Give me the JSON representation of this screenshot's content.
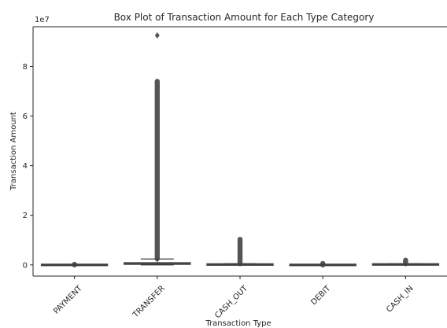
{
  "chart_data": {
    "type": "boxplot",
    "title": "Box Plot of Transaction Amount for Each Type Category",
    "xlabel": "Transaction Type",
    "ylabel": "Transaction Amount",
    "y_offset_label": "1e7",
    "y_unit_multiplier": 10000000,
    "ylim": [
      -0.45,
      9.6
    ],
    "yticks": [
      0,
      2,
      4,
      6,
      8
    ],
    "grid": false,
    "legend": "none",
    "categories": [
      "PAYMENT",
      "TRANSFER",
      "CASH_OUT",
      "DEBIT",
      "CASH_IN"
    ],
    "boxes": [
      {
        "category": "PAYMENT",
        "q1": 0.0005,
        "median": 0.0009,
        "q3": 0.0013,
        "whisker_low": 0.0,
        "whisker_high": 0.0025,
        "outliers_range": [
          0.003,
          0.024
        ]
      },
      {
        "category": "TRANSFER",
        "q1": 0.022,
        "median": 0.049,
        "q3": 0.091,
        "whisker_low": 0.0,
        "whisker_high": 0.24,
        "outliers_range": [
          0.25,
          7.4
        ],
        "outliers_sparse": [
          9.25
        ]
      },
      {
        "category": "CASH_OUT",
        "q1": 0.007,
        "median": 0.015,
        "q3": 0.025,
        "whisker_low": 0.0,
        "whisker_high": 0.05,
        "outliers_range": [
          0.05,
          1.03
        ]
      },
      {
        "category": "DEBIT",
        "q1": 0.0002,
        "median": 0.0004,
        "q3": 0.0008,
        "whisker_low": 0.0,
        "whisker_high": 0.0015,
        "outliers_range": [
          0.002,
          0.057
        ]
      },
      {
        "category": "CASH_IN",
        "q1": 0.013,
        "median": 0.017,
        "q3": 0.025,
        "whisker_low": 0.0,
        "whisker_high": 0.05,
        "outliers_range": [
          0.05,
          0.19
        ]
      }
    ]
  },
  "colors": {
    "PAYMENT": "#3a76af",
    "TRANSFER": "#ef8636",
    "CASH_OUT": "#4b9b48",
    "DEBIT": "#c5393a",
    "CASH_IN": "#8c6cbb",
    "line": "#3f3f3f",
    "axis": "#262626"
  }
}
